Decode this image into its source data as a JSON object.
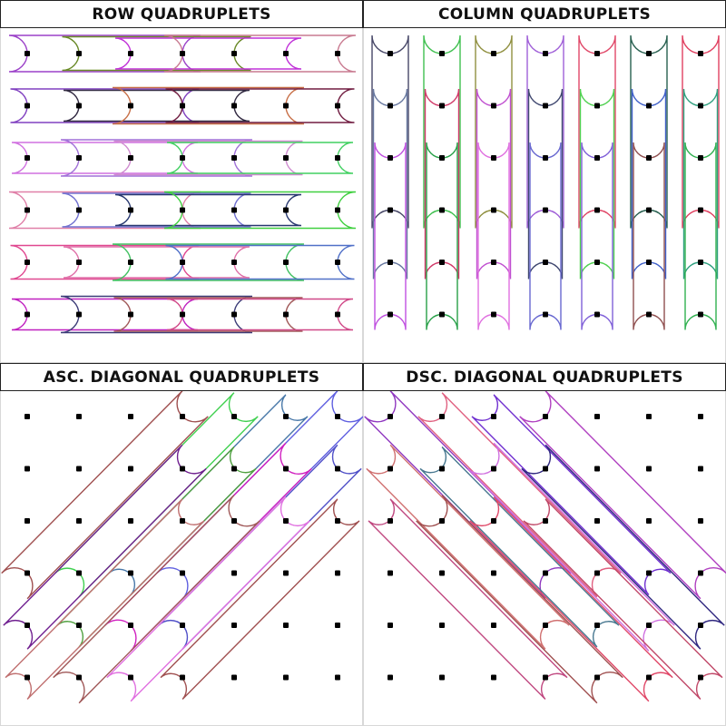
{
  "grid": {
    "rows": 6,
    "cols": 7,
    "window": 4,
    "dot_color": "#000000"
  },
  "panels": [
    {
      "id": "row",
      "title": "ROW QUADRUPLETS",
      "colors": [
        "#9b40c8",
        "#6a8a28",
        "#c030d8",
        "#c87a90",
        "#8040c0",
        "#302840",
        "#c87048",
        "#701c40",
        "#d070e0",
        "#a070d8",
        "#d08cd0",
        "#40d060",
        "#e080a8",
        "#7070d0",
        "#283870",
        "#40d040",
        "#e04890",
        "#e070a8",
        "#40c060",
        "#5070c8",
        "#c020c0",
        "#3c3c78",
        "#a05858",
        "#d04888"
      ]
    },
    {
      "id": "column",
      "title": "COLUMN QUADRUPLETS",
      "colors": [
        "#484868",
        "#6878a0",
        "#c050e0",
        "#40c050",
        "#d03868",
        "#28a048",
        "#909040",
        "#c050d0",
        "#e070e0",
        "#a060d8",
        "#404870",
        "#6868d0",
        "#e04868",
        "#50d050",
        "#8060d8",
        "#286050",
        "#4060c8",
        "#905050",
        "#e04060",
        "#30a080",
        "#30b050"
      ]
    },
    {
      "id": "asc",
      "title": "ASC. DIAGONAL QUADRUPLETS",
      "colors": [
        "#a05050",
        "#40d050",
        "#4878a8",
        "#6060e0",
        "#702090",
        "#50a040",
        "#d020c0",
        "#5050c8",
        "#c07070",
        "#a05858",
        "#e070e0",
        "#a05050"
      ]
    },
    {
      "id": "dsc",
      "title": "DSC. DIAGONAL QUADRUPLETS",
      "colors": [
        "#9038c0",
        "#e06080",
        "#7030d0",
        "#b040c0",
        "#d07070",
        "#487890",
        "#d070e0",
        "#302880",
        "#c04880",
        "#a05050",
        "#e04868",
        "#c04868"
      ]
    }
  ]
}
